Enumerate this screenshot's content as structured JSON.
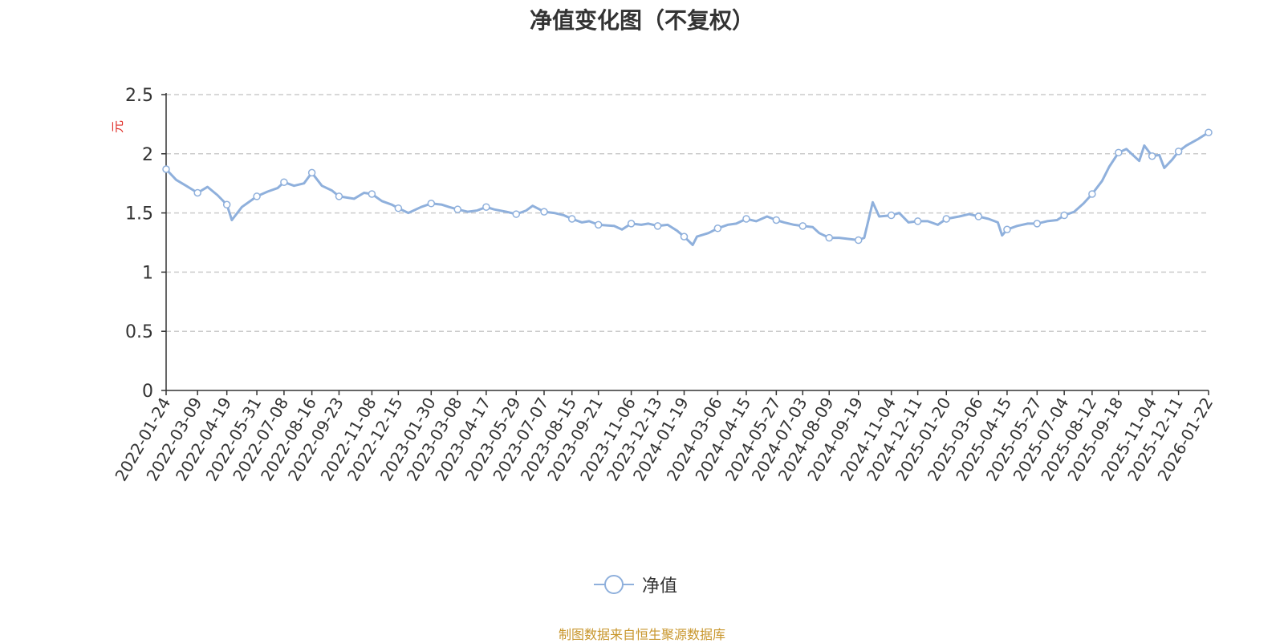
{
  "chart_data": {
    "type": "line",
    "title": "净值变化图（不复权）",
    "ylabel": "元",
    "ylim": [
      0,
      2.5
    ],
    "yticks": [
      0,
      0.5,
      1,
      1.5,
      2,
      2.5
    ],
    "ytick_labels": [
      "0",
      "0.5",
      "1",
      "1.5",
      "2",
      "2.5"
    ],
    "x_tick_labels": [
      "2022-01-24",
      "2022-03-09",
      "2022-04-19",
      "2022-05-31",
      "2022-07-08",
      "2022-08-16",
      "2022-09-23",
      "2022-11-08",
      "2022-12-15",
      "2023-01-30",
      "2023-03-08",
      "2023-04-17",
      "2023-05-29",
      "2023-07-07",
      "2023-08-15",
      "2023-09-21",
      "2023-11-06",
      "2023-12-13",
      "2024-01-19",
      "2024-03-06",
      "2024-04-15",
      "2024-05-27",
      "2024-07-03",
      "2024-08-09",
      "2024-09-19",
      "2024-11-04",
      "2024-12-11",
      "2025-01-20",
      "2025-03-06",
      "2025-04-15",
      "2025-05-27",
      "2025-07-04",
      "2025-08-12",
      "2025-09-18",
      "2025-11-04",
      "2025-12-11",
      "2026-01-22"
    ],
    "grid": true,
    "grid_style": "dashed",
    "series": [
      {
        "name": "净值",
        "color": "#8fb0dc",
        "x": [
          "2022-01-24",
          "2022-02-07",
          "2022-02-21",
          "2022-03-09",
          "2022-03-23",
          "2022-04-06",
          "2022-04-19",
          "2022-04-26",
          "2022-05-10",
          "2022-05-31",
          "2022-06-15",
          "2022-06-29",
          "2022-07-08",
          "2022-07-22",
          "2022-08-05",
          "2022-08-16",
          "2022-08-30",
          "2022-09-13",
          "2022-09-23",
          "2022-10-14",
          "2022-10-28",
          "2022-11-08",
          "2022-11-22",
          "2022-12-06",
          "2022-12-15",
          "2022-12-29",
          "2023-01-16",
          "2023-01-30",
          "2023-02-14",
          "2023-02-24",
          "2023-03-08",
          "2023-03-22",
          "2023-04-04",
          "2023-04-17",
          "2023-04-28",
          "2023-05-15",
          "2023-05-29",
          "2023-06-12",
          "2023-06-21",
          "2023-07-07",
          "2023-07-21",
          "2023-08-04",
          "2023-08-15",
          "2023-08-29",
          "2023-09-08",
          "2023-09-21",
          "2023-10-13",
          "2023-10-24",
          "2023-11-06",
          "2023-11-20",
          "2023-11-30",
          "2023-12-13",
          "2023-12-27",
          "2024-01-09",
          "2024-01-19",
          "2024-01-31",
          "2024-02-06",
          "2024-02-22",
          "2024-03-06",
          "2024-03-20",
          "2024-04-01",
          "2024-04-15",
          "2024-04-29",
          "2024-05-14",
          "2024-05-27",
          "2024-06-07",
          "2024-06-21",
          "2024-07-03",
          "2024-07-17",
          "2024-07-26",
          "2024-08-09",
          "2024-08-23",
          "2024-09-06",
          "2024-09-19",
          "2024-09-27",
          "2024-10-09",
          "2024-10-18",
          "2024-11-04",
          "2024-11-15",
          "2024-11-28",
          "2024-12-11",
          "2024-12-25",
          "2025-01-08",
          "2025-01-20",
          "2025-02-07",
          "2025-02-21",
          "2025-03-06",
          "2025-03-20",
          "2025-04-02",
          "2025-04-08",
          "2025-04-15",
          "2025-04-29",
          "2025-05-14",
          "2025-05-27",
          "2025-06-10",
          "2025-06-24",
          "2025-07-04",
          "2025-07-18",
          "2025-07-31",
          "2025-08-12",
          "2025-08-26",
          "2025-09-05",
          "2025-09-18",
          "2025-09-29",
          "2025-10-17",
          "2025-10-24",
          "2025-11-04",
          "2025-11-14",
          "2025-11-21",
          "2025-12-02",
          "2025-12-11",
          "2025-12-22",
          "2026-01-06",
          "2026-01-22"
        ],
        "values": [
          1.87,
          1.78,
          1.73,
          1.67,
          1.72,
          1.65,
          1.57,
          1.44,
          1.55,
          1.64,
          1.68,
          1.71,
          1.76,
          1.73,
          1.75,
          1.84,
          1.73,
          1.69,
          1.64,
          1.62,
          1.67,
          1.66,
          1.6,
          1.57,
          1.54,
          1.5,
          1.55,
          1.58,
          1.57,
          1.55,
          1.53,
          1.51,
          1.52,
          1.55,
          1.53,
          1.51,
          1.49,
          1.52,
          1.56,
          1.51,
          1.5,
          1.48,
          1.45,
          1.42,
          1.43,
          1.4,
          1.39,
          1.36,
          1.41,
          1.4,
          1.41,
          1.39,
          1.4,
          1.35,
          1.3,
          1.23,
          1.3,
          1.33,
          1.37,
          1.4,
          1.41,
          1.45,
          1.43,
          1.47,
          1.44,
          1.42,
          1.4,
          1.39,
          1.38,
          1.33,
          1.29,
          1.29,
          1.28,
          1.27,
          1.29,
          1.59,
          1.47,
          1.48,
          1.5,
          1.42,
          1.43,
          1.43,
          1.4,
          1.45,
          1.47,
          1.49,
          1.47,
          1.45,
          1.42,
          1.31,
          1.36,
          1.39,
          1.41,
          1.41,
          1.43,
          1.44,
          1.48,
          1.51,
          1.58,
          1.66,
          1.77,
          1.89,
          2.01,
          2.04,
          1.94,
          2.07,
          1.98,
          1.99,
          1.88,
          1.95,
          2.02,
          2.07,
          2.12,
          2.18
        ],
        "marker_x": [
          "2022-01-24",
          "2022-03-09",
          "2022-04-19",
          "2022-05-31",
          "2022-07-08",
          "2022-08-16",
          "2022-09-23",
          "2022-11-08",
          "2022-12-15",
          "2023-01-30",
          "2023-03-08",
          "2023-04-17",
          "2023-05-29",
          "2023-07-07",
          "2023-08-15",
          "2023-09-21",
          "2023-11-06",
          "2023-12-13",
          "2024-01-19",
          "2024-03-06",
          "2024-04-15",
          "2024-05-27",
          "2024-07-03",
          "2024-08-09",
          "2024-09-19",
          "2024-11-04",
          "2024-12-11",
          "2025-01-20",
          "2025-03-06",
          "2025-04-15",
          "2025-05-27",
          "2025-07-04",
          "2025-08-12",
          "2025-09-18",
          "2025-11-04",
          "2025-12-11",
          "2026-01-22"
        ]
      }
    ]
  },
  "legend": {
    "label": "净值"
  },
  "footer": {
    "source": "制图数据来自恒生聚源数据库"
  },
  "colors": {
    "line": "#8fb0dc",
    "ylabel": "#e0322c",
    "axis": "#333333",
    "grid": "#cccccc",
    "source": "#c8962c"
  }
}
